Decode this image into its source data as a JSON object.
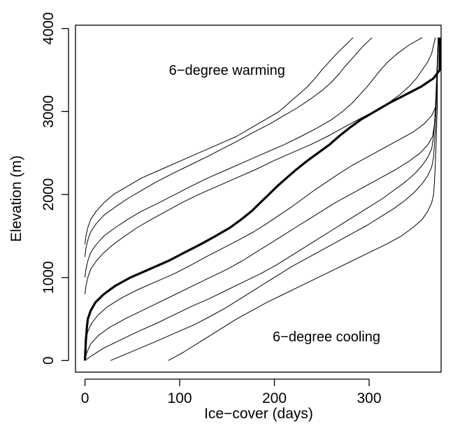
{
  "colors": {
    "line": "#000000",
    "background": "#ffffff"
  },
  "chart_data": {
    "type": "line",
    "title": "",
    "xlabel": "Ice−cover (days)",
    "ylabel": "Elevation (m)",
    "xlim": [
      -10,
      376
    ],
    "ylim": [
      -140,
      4040
    ],
    "xticks": [
      0,
      100,
      200,
      300
    ],
    "yticks": [
      0,
      1000,
      2000,
      3000,
      4000
    ],
    "xtick_labels": [
      "0",
      "100",
      "200",
      "300"
    ],
    "ytick_labels": [
      "0",
      "1000",
      "2000",
      "3000",
      "4000"
    ],
    "grid": false,
    "legend": "none",
    "annotations": [
      {
        "text": "6−degree warming",
        "x": 150,
        "y": 3500
      },
      {
        "text": "6−degree cooling",
        "x": 255,
        "y": 290
      }
    ],
    "series": [
      {
        "emphasis": false,
        "points": [
          [
            0,
            1400
          ],
          [
            1,
            1500
          ],
          [
            3,
            1600
          ],
          [
            6,
            1700
          ],
          [
            12,
            1800
          ],
          [
            20,
            1900
          ],
          [
            30,
            2000
          ],
          [
            45,
            2100
          ],
          [
            60,
            2200
          ],
          [
            80,
            2300
          ],
          [
            100,
            2400
          ],
          [
            120,
            2500
          ],
          [
            140,
            2600
          ],
          [
            160,
            2700
          ],
          [
            175,
            2800
          ],
          [
            190,
            2900
          ],
          [
            205,
            3000
          ],
          [
            215,
            3100
          ],
          [
            225,
            3200
          ],
          [
            235,
            3300
          ],
          [
            243,
            3400
          ],
          [
            250,
            3500
          ],
          [
            258,
            3600
          ],
          [
            266,
            3700
          ],
          [
            275,
            3800
          ],
          [
            283,
            3890
          ]
        ]
      },
      {
        "emphasis": false,
        "points": [
          [
            0,
            1250
          ],
          [
            1,
            1350
          ],
          [
            3,
            1450
          ],
          [
            6,
            1550
          ],
          [
            12,
            1650
          ],
          [
            20,
            1750
          ],
          [
            32,
            1850
          ],
          [
            45,
            1950
          ],
          [
            60,
            2050
          ],
          [
            75,
            2150
          ],
          [
            92,
            2250
          ],
          [
            110,
            2350
          ],
          [
            128,
            2450
          ],
          [
            145,
            2550
          ],
          [
            162,
            2650
          ],
          [
            178,
            2750
          ],
          [
            195,
            2850
          ],
          [
            210,
            2950
          ],
          [
            225,
            3050
          ],
          [
            238,
            3150
          ],
          [
            250,
            3250
          ],
          [
            260,
            3350
          ],
          [
            268,
            3450
          ],
          [
            275,
            3550
          ],
          [
            283,
            3650
          ],
          [
            293,
            3780
          ],
          [
            303,
            3890
          ]
        ]
      },
      {
        "emphasis": false,
        "points": [
          [
            0,
            1000
          ],
          [
            1,
            1100
          ],
          [
            3,
            1200
          ],
          [
            6,
            1300
          ],
          [
            12,
            1400
          ],
          [
            20,
            1500
          ],
          [
            32,
            1600
          ],
          [
            45,
            1700
          ],
          [
            60,
            1800
          ],
          [
            78,
            1900
          ],
          [
            95,
            2000
          ],
          [
            112,
            2100
          ],
          [
            130,
            2200
          ],
          [
            150,
            2300
          ],
          [
            170,
            2400
          ],
          [
            190,
            2500
          ],
          [
            210,
            2600
          ],
          [
            228,
            2700
          ],
          [
            245,
            2800
          ],
          [
            260,
            2900
          ],
          [
            272,
            3000
          ],
          [
            282,
            3100
          ],
          [
            290,
            3200
          ],
          [
            298,
            3300
          ],
          [
            305,
            3400
          ],
          [
            312,
            3500
          ],
          [
            320,
            3600
          ],
          [
            330,
            3700
          ],
          [
            342,
            3800
          ],
          [
            356,
            3890
          ]
        ]
      },
      {
        "emphasis": false,
        "points": [
          [
            0,
            800
          ],
          [
            1,
            900
          ],
          [
            3,
            1000
          ],
          [
            6,
            1100
          ],
          [
            12,
            1200
          ],
          [
            20,
            1300
          ],
          [
            30,
            1400
          ],
          [
            42,
            1500
          ],
          [
            55,
            1600
          ],
          [
            70,
            1700
          ],
          [
            86,
            1800
          ],
          [
            102,
            1900
          ],
          [
            120,
            2000
          ],
          [
            140,
            2100
          ],
          [
            160,
            2200
          ],
          [
            180,
            2300
          ],
          [
            198,
            2400
          ],
          [
            218,
            2500
          ],
          [
            238,
            2600
          ],
          [
            256,
            2700
          ],
          [
            272,
            2800
          ],
          [
            288,
            2900
          ],
          [
            305,
            3000
          ],
          [
            320,
            3100
          ],
          [
            332,
            3200
          ],
          [
            342,
            3300
          ],
          [
            350,
            3400
          ],
          [
            356,
            3500
          ],
          [
            362,
            3600
          ],
          [
            366,
            3700
          ],
          [
            368,
            3800
          ],
          [
            370,
            3890
          ]
        ]
      },
      {
        "emphasis": true,
        "points": [
          [
            0,
            0
          ],
          [
            1,
            250
          ],
          [
            2,
            400
          ],
          [
            3,
            500
          ],
          [
            6,
            600
          ],
          [
            11,
            700
          ],
          [
            20,
            800
          ],
          [
            32,
            900
          ],
          [
            48,
            1000
          ],
          [
            68,
            1100
          ],
          [
            88,
            1200
          ],
          [
            105,
            1300
          ],
          [
            122,
            1400
          ],
          [
            138,
            1500
          ],
          [
            153,
            1600
          ],
          [
            165,
            1700
          ],
          [
            176,
            1800
          ],
          [
            185,
            1900
          ],
          [
            194,
            2000
          ],
          [
            203,
            2100
          ],
          [
            213,
            2200
          ],
          [
            223,
            2300
          ],
          [
            234,
            2400
          ],
          [
            246,
            2500
          ],
          [
            258,
            2600
          ],
          [
            268,
            2700
          ],
          [
            279,
            2800
          ],
          [
            291,
            2900
          ],
          [
            306,
            3000
          ],
          [
            321,
            3100
          ],
          [
            338,
            3200
          ],
          [
            355,
            3300
          ],
          [
            368,
            3400
          ],
          [
            379,
            3500
          ],
          [
            385,
            3600
          ],
          [
            390,
            3700
          ],
          [
            394,
            3800
          ],
          [
            398,
            3890
          ]
        ]
      },
      {
        "emphasis": false,
        "points": [
          [
            0,
            150
          ],
          [
            1,
            250
          ],
          [
            3,
            350
          ],
          [
            7,
            450
          ],
          [
            14,
            550
          ],
          [
            24,
            650
          ],
          [
            38,
            750
          ],
          [
            55,
            850
          ],
          [
            75,
            950
          ],
          [
            95,
            1050
          ],
          [
            112,
            1150
          ],
          [
            128,
            1250
          ],
          [
            145,
            1350
          ],
          [
            162,
            1450
          ],
          [
            178,
            1550
          ],
          [
            192,
            1650
          ],
          [
            205,
            1750
          ],
          [
            218,
            1850
          ],
          [
            230,
            1950
          ],
          [
            242,
            2050
          ],
          [
            255,
            2150
          ],
          [
            268,
            2250
          ],
          [
            282,
            2350
          ],
          [
            298,
            2450
          ],
          [
            314,
            2550
          ],
          [
            330,
            2650
          ],
          [
            346,
            2750
          ],
          [
            358,
            2850
          ],
          [
            366,
            2950
          ],
          [
            370,
            3050
          ],
          [
            371,
            3200
          ],
          [
            372,
            3400
          ],
          [
            372,
            3600
          ],
          [
            373,
            3890
          ]
        ]
      },
      {
        "emphasis": false,
        "points": [
          [
            0,
            0
          ],
          [
            2,
            100
          ],
          [
            6,
            200
          ],
          [
            14,
            300
          ],
          [
            26,
            400
          ],
          [
            42,
            500
          ],
          [
            60,
            600
          ],
          [
            78,
            700
          ],
          [
            96,
            800
          ],
          [
            114,
            900
          ],
          [
            132,
            1000
          ],
          [
            150,
            1100
          ],
          [
            166,
            1200
          ],
          [
            180,
            1300
          ],
          [
            194,
            1400
          ],
          [
            208,
            1500
          ],
          [
            222,
            1600
          ],
          [
            236,
            1700
          ],
          [
            250,
            1800
          ],
          [
            264,
            1900
          ],
          [
            280,
            2000
          ],
          [
            296,
            2100
          ],
          [
            312,
            2200
          ],
          [
            328,
            2300
          ],
          [
            342,
            2400
          ],
          [
            354,
            2500
          ],
          [
            362,
            2600
          ],
          [
            367,
            2700
          ],
          [
            369,
            2850
          ],
          [
            370,
            3050
          ],
          [
            371,
            3300
          ],
          [
            372,
            3600
          ],
          [
            373,
            3890
          ]
        ]
      },
      {
        "emphasis": false,
        "points": [
          [
            0,
            0
          ],
          [
            6,
            50
          ],
          [
            20,
            150
          ],
          [
            38,
            250
          ],
          [
            56,
            350
          ],
          [
            76,
            450
          ],
          [
            94,
            550
          ],
          [
            112,
            650
          ],
          [
            132,
            750
          ],
          [
            150,
            850
          ],
          [
            168,
            950
          ],
          [
            186,
            1050
          ],
          [
            202,
            1150
          ],
          [
            216,
            1250
          ],
          [
            230,
            1350
          ],
          [
            244,
            1450
          ],
          [
            258,
            1550
          ],
          [
            272,
            1650
          ],
          [
            286,
            1750
          ],
          [
            300,
            1850
          ],
          [
            314,
            1950
          ],
          [
            326,
            2050
          ],
          [
            338,
            2150
          ],
          [
            348,
            2250
          ],
          [
            356,
            2350
          ],
          [
            362,
            2450
          ],
          [
            366,
            2550
          ],
          [
            368,
            2700
          ],
          [
            369,
            2850
          ],
          [
            370,
            3050
          ],
          [
            371,
            3300
          ],
          [
            372,
            3600
          ],
          [
            373,
            3890
          ]
        ]
      },
      {
        "emphasis": false,
        "points": [
          [
            27,
            0
          ],
          [
            50,
            110
          ],
          [
            75,
            230
          ],
          [
            95,
            330
          ],
          [
            115,
            430
          ],
          [
            132,
            530
          ],
          [
            148,
            630
          ],
          [
            162,
            730
          ],
          [
            176,
            830
          ],
          [
            190,
            930
          ],
          [
            204,
            1030
          ],
          [
            218,
            1130
          ],
          [
            234,
            1230
          ],
          [
            250,
            1330
          ],
          [
            266,
            1430
          ],
          [
            282,
            1530
          ],
          [
            298,
            1630
          ],
          [
            312,
            1730
          ],
          [
            326,
            1830
          ],
          [
            338,
            1930
          ],
          [
            348,
            2030
          ],
          [
            356,
            2130
          ],
          [
            362,
            2230
          ],
          [
            366,
            2330
          ],
          [
            368,
            2450
          ],
          [
            369,
            2600
          ],
          [
            370,
            2800
          ],
          [
            371,
            3100
          ],
          [
            372,
            3500
          ],
          [
            373,
            3890
          ]
        ]
      },
      {
        "emphasis": false,
        "points": [
          [
            88,
            0
          ],
          [
            104,
            100
          ],
          [
            118,
            200
          ],
          [
            132,
            300
          ],
          [
            146,
            400
          ],
          [
            160,
            500
          ],
          [
            176,
            600
          ],
          [
            192,
            700
          ],
          [
            210,
            800
          ],
          [
            228,
            900
          ],
          [
            246,
            1000
          ],
          [
            264,
            1100
          ],
          [
            282,
            1200
          ],
          [
            300,
            1300
          ],
          [
            318,
            1400
          ],
          [
            334,
            1500
          ],
          [
            346,
            1600
          ],
          [
            356,
            1700
          ],
          [
            362,
            1800
          ],
          [
            366,
            1900
          ],
          [
            368,
            2000
          ],
          [
            369,
            2150
          ],
          [
            370,
            2400
          ],
          [
            371,
            2700
          ],
          [
            372,
            3100
          ],
          [
            372,
            3500
          ],
          [
            373,
            3890
          ]
        ]
      }
    ]
  }
}
